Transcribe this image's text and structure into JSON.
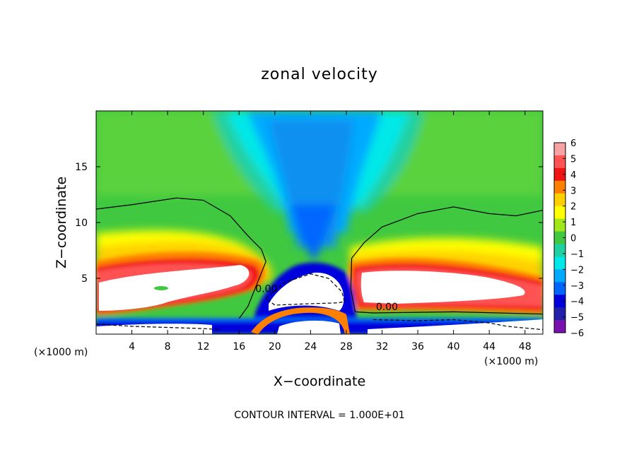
{
  "chart_data": {
    "type": "heatmap",
    "title": "zonal velocity",
    "xlabel": "X−coordinate",
    "ylabel": "Z−coordinate",
    "x_units": "(×1000 m)",
    "x_units_right": "(×1000 m)",
    "xlim": [
      0,
      50
    ],
    "ylim": [
      0,
      20
    ],
    "x_ticks": [
      4,
      8,
      12,
      16,
      20,
      24,
      28,
      32,
      36,
      40,
      44,
      48
    ],
    "y_ticks": [
      5,
      10,
      15
    ],
    "colorbar": {
      "levels": [
        6,
        5,
        4,
        3,
        2,
        1,
        0,
        -1,
        -2,
        -3,
        -4,
        -5,
        -6
      ],
      "labels": [
        "6",
        "5",
        "4",
        "3",
        "2",
        "1",
        "0",
        "−1",
        "−2",
        "−3",
        "−4",
        "−5",
        "−6"
      ],
      "colors": [
        "#f7a3a3",
        "#ff5252",
        "#f01515",
        "#ff8000",
        "#ffd000",
        "#ffff00",
        "#a0e81a",
        "#40c840",
        "#20d0a0",
        "#00e8e8",
        "#00aaff",
        "#0066ff",
        "#0000dd",
        "#2020a8",
        "#7a10b0"
      ]
    },
    "contours": [
      {
        "level": 0.0,
        "label": "0.00",
        "style": "solid",
        "x": [
          0,
          4,
          9,
          12,
          15,
          17,
          18.5,
          19,
          17.5,
          17,
          16
        ],
        "z": [
          11.2,
          11.6,
          12.2,
          12.0,
          10.6,
          8.8,
          7.6,
          6.5,
          3.5,
          2.5,
          1.4
        ]
      },
      {
        "level": 0.0,
        "label": "0.00",
        "style": "solid",
        "x": [
          50,
          47,
          44,
          40,
          36,
          32,
          30,
          28.6,
          28.5,
          29,
          31,
          40,
          50
        ],
        "z": [
          11.1,
          10.6,
          10.8,
          11.4,
          10.8,
          9.6,
          8.2,
          6.8,
          4.0,
          2.0,
          1.9,
          2.0,
          1.8
        ]
      },
      {
        "level": -10.0,
        "label": "",
        "style": "dashed",
        "x": [
          19,
          21,
          24,
          26,
          27.5,
          27.8,
          27,
          23,
          20,
          19
        ],
        "z": [
          3.2,
          4.6,
          5.4,
          5.0,
          3.8,
          2.9,
          2.8,
          2.7,
          2.6,
          3.2
        ]
      },
      {
        "level": -10.0,
        "label": "",
        "style": "dashed",
        "x": [
          31,
          36,
          40,
          44,
          46,
          50
        ],
        "z": [
          1.3,
          1.2,
          1.3,
          1.0,
          0.7,
          0.4
        ]
      },
      {
        "level": -10.0,
        "label": "",
        "style": "dashed",
        "x": [
          0,
          4,
          8,
          12,
          14
        ],
        "z": [
          0.9,
          0.7,
          0.6,
          0.5,
          0.4
        ]
      }
    ]
  },
  "footer": {
    "contour_interval": "CONTOUR INTERVAL = 1.000E+01"
  }
}
